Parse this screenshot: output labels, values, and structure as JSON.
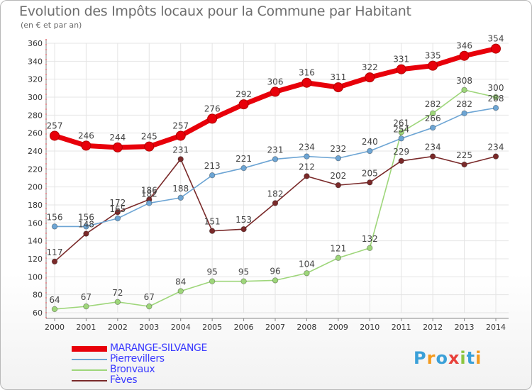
{
  "title": "Evolution des Impôts locaux pour la Commune par Habitant",
  "subtitle": "(en € et par an)",
  "logo": {
    "text": "Proxiti",
    "letter_colors": [
      "#3aa0d8",
      "#f39a1e",
      "#3aa0d8",
      "#e8403a",
      "#8cc63f",
      "#3aa0d8",
      "#f39a1e"
    ]
  },
  "chart_data": {
    "type": "line",
    "x": [
      2000,
      2001,
      2002,
      2003,
      2004,
      2005,
      2006,
      2007,
      2008,
      2009,
      2010,
      2011,
      2012,
      2013,
      2014
    ],
    "ylim": [
      60,
      360
    ],
    "yticks": [
      60,
      80,
      100,
      120,
      140,
      160,
      180,
      200,
      220,
      240,
      260,
      280,
      300,
      320,
      340,
      360
    ],
    "grid": true,
    "legend_position": "bottom-left",
    "series": [
      {
        "name": "MARANGE-SILVANGE",
        "color": "#e8000a",
        "label_color": "#3a3aff",
        "values": [
          257,
          246,
          244,
          245,
          257,
          276,
          292,
          306,
          316,
          311,
          322,
          331,
          335,
          346,
          354
        ],
        "labels": [
          "257",
          "246",
          "244",
          "245",
          "257",
          "276",
          "292",
          "306",
          "316",
          "311",
          "322",
          "331",
          "335",
          "346",
          "354"
        ]
      },
      {
        "name": "Pierrevillers",
        "color": "#6da5d4",
        "label_color": "#3a3aff",
        "values": [
          156,
          156,
          165,
          182,
          188,
          213,
          221,
          231,
          234,
          232,
          240,
          254,
          266,
          282,
          288
        ],
        "labels": [
          "156",
          "156",
          "165",
          "182",
          "188",
          "213",
          "221",
          "231",
          "234",
          "232",
          "240",
          "254",
          "266",
          "282",
          "288"
        ]
      },
      {
        "name": "Bronvaux",
        "color": "#9ed67a",
        "label_color": "#3a3aff",
        "values": [
          64,
          67,
          72,
          67,
          84,
          95,
          95,
          96,
          104,
          121,
          132,
          261,
          282,
          308,
          300
        ],
        "labels": [
          "64",
          "67",
          "72",
          "67",
          "84",
          "95",
          "95",
          "96",
          "104",
          "121",
          "132",
          "261",
          "282",
          "308",
          "300"
        ]
      },
      {
        "name": "Fèves",
        "color": "#7a2a2a",
        "label_color": "#3a3aff",
        "values": [
          117,
          148,
          172,
          186,
          231,
          151,
          153,
          182,
          212,
          202,
          205,
          229,
          234,
          225,
          234
        ],
        "labels": [
          "117",
          "148",
          "172",
          "186",
          "231",
          "151",
          "153",
          "182",
          "212",
          "202",
          "205",
          "229",
          "234",
          "225",
          "234"
        ]
      }
    ]
  }
}
